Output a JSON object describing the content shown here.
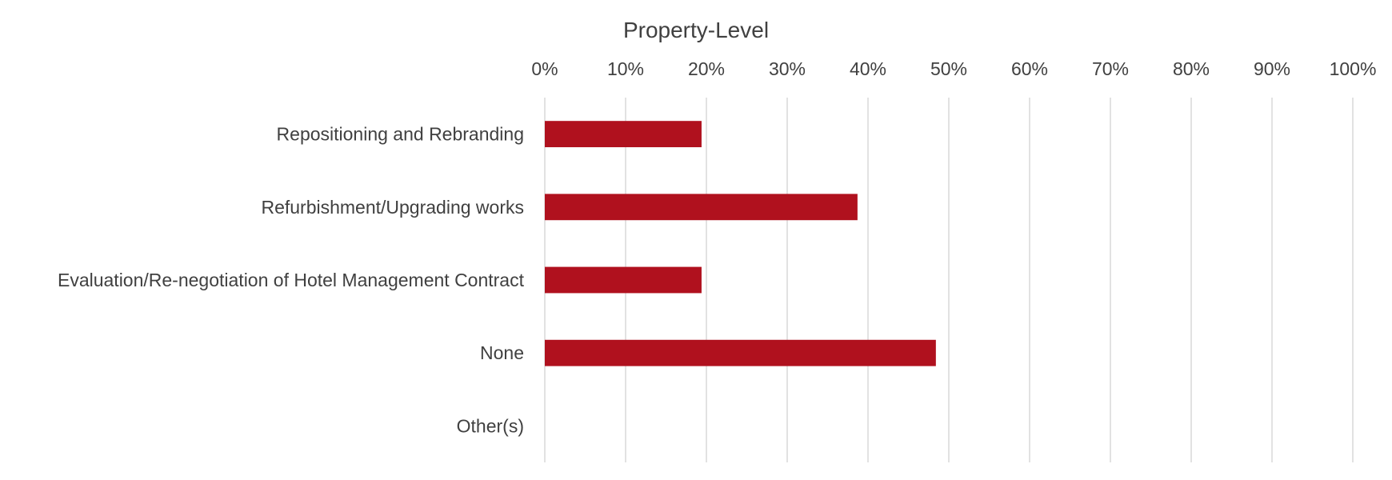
{
  "chart_data": {
    "type": "bar",
    "orientation": "horizontal",
    "title": "Property-Level",
    "xlabel": "",
    "ylabel": "",
    "xlim": [
      0,
      100
    ],
    "x_tick_labels": [
      "0%",
      "10%",
      "20%",
      "30%",
      "40%",
      "50%",
      "60%",
      "70%",
      "80%",
      "90%",
      "100%"
    ],
    "x_axis_position": "top",
    "grid": "vertical",
    "legend": "none",
    "categories": [
      "Repositioning and Rebranding",
      "Refurbishment/Upgrading works",
      "Evaluation/Re-negotiation of Hotel Management Contract",
      "None",
      "Other(s)"
    ],
    "values": [
      19.4,
      38.7,
      19.4,
      48.4,
      0
    ],
    "unit": "%",
    "bar_color": "#b0111e"
  }
}
